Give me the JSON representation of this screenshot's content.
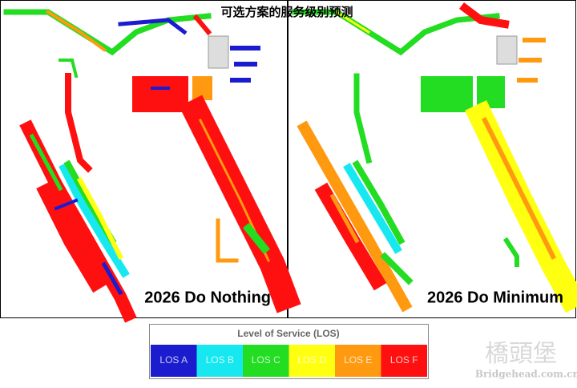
{
  "title": "可选方案的服务级别预测",
  "panels": [
    {
      "label": "2026 Do Nothing"
    },
    {
      "label": "2026 Do Minimum"
    }
  ],
  "legend": {
    "title": "Level of Service (LOS)",
    "items": [
      {
        "label": "LOS A",
        "color": "#1c1ccf"
      },
      {
        "label": "LOS B",
        "color": "#17e8f0"
      },
      {
        "label": "LOS C",
        "color": "#22dd22"
      },
      {
        "label": "LOS D",
        "color": "#ffff10"
      },
      {
        "label": "LOS E",
        "color": "#ff9a10"
      },
      {
        "label": "LOS F",
        "color": "#ff1010"
      }
    ]
  },
  "watermark": {
    "name": "橋頭堡",
    "url": "Bridgehead.com.cn"
  }
}
